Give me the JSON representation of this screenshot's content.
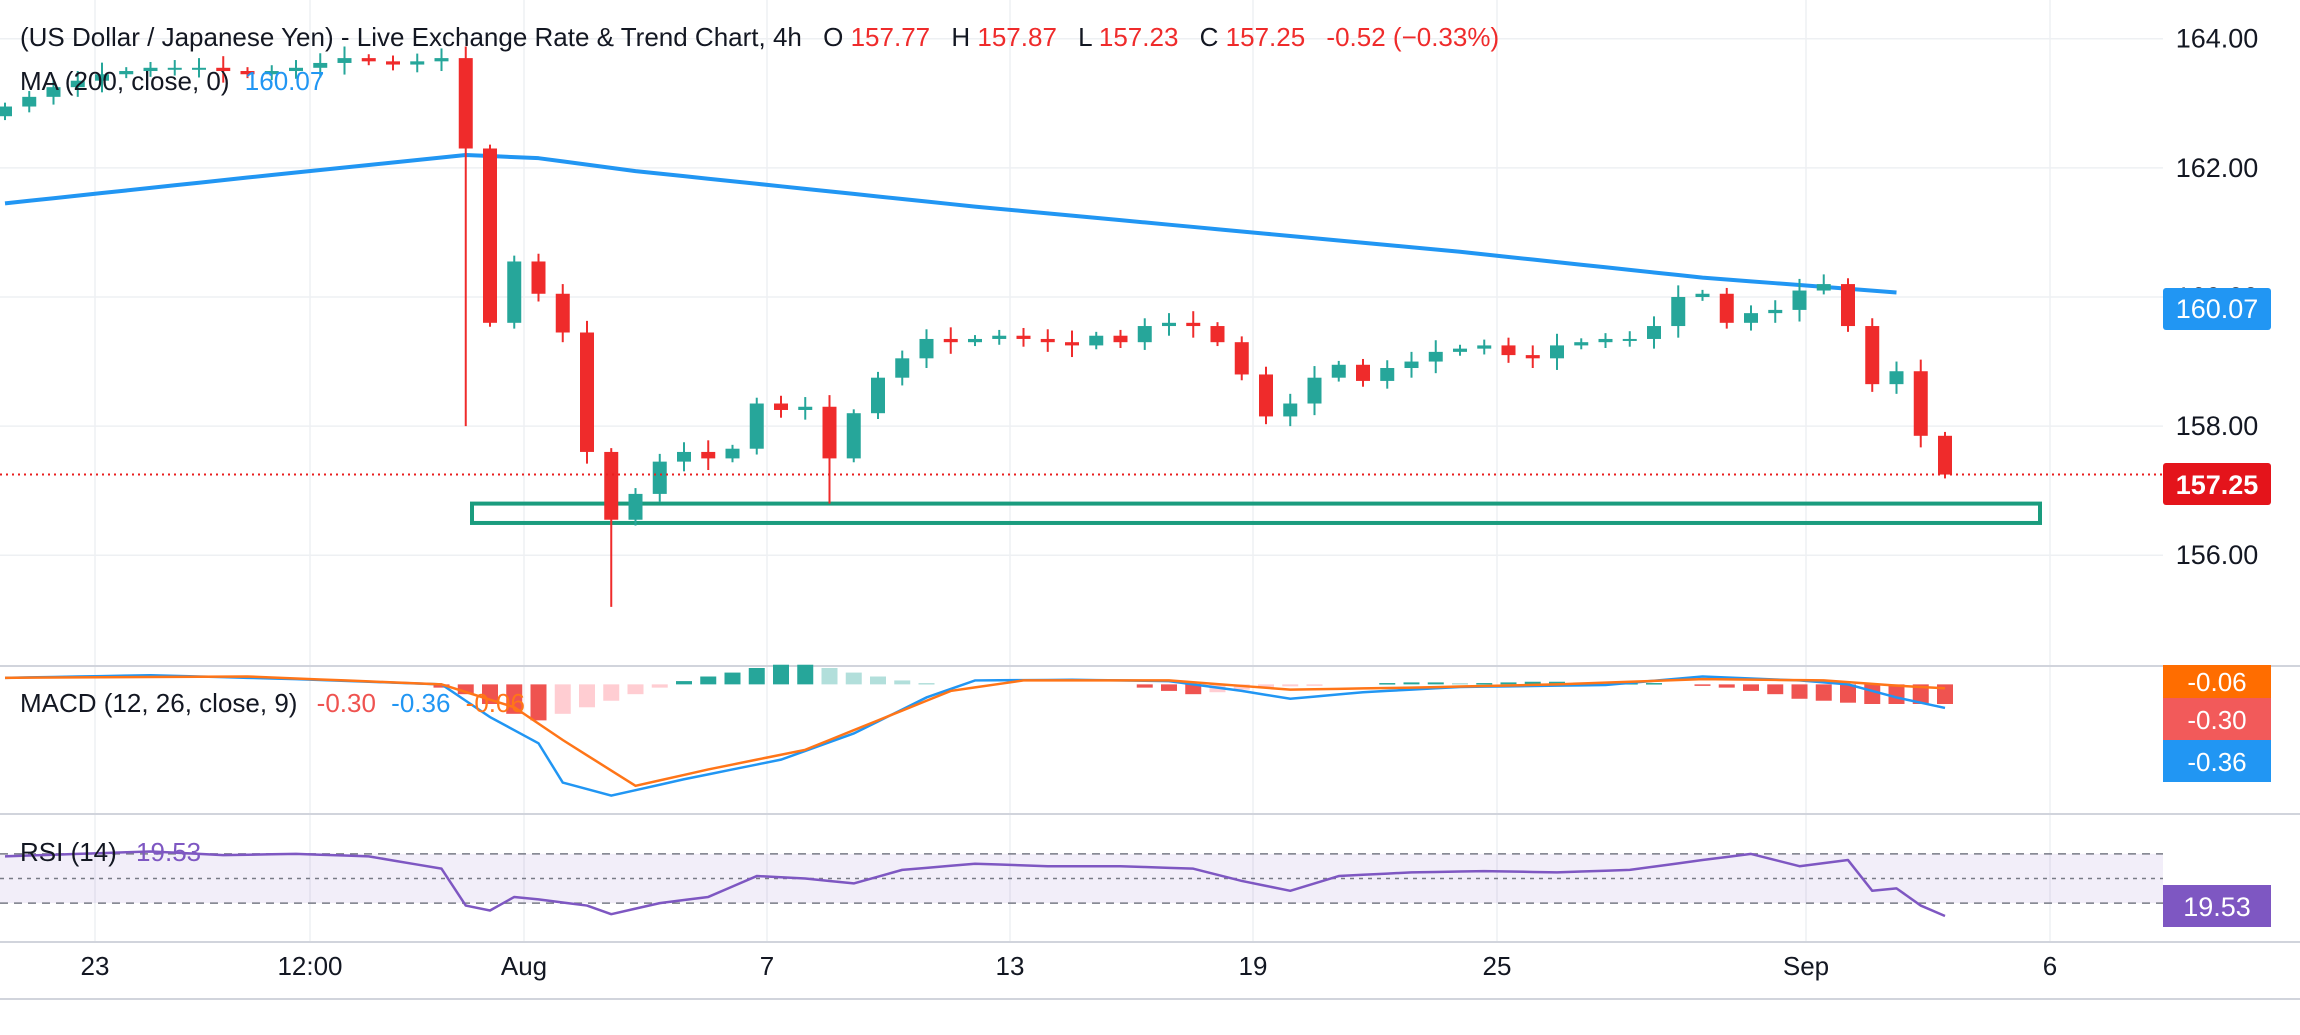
{
  "header": {
    "symbol": "(US Dollar / Japanese Yen) - Live Exchange Rate & Trend Chart, 4h",
    "o_label": "O",
    "o_value": "157.77",
    "h_label": "H",
    "h_value": "157.87",
    "l_label": "L",
    "l_value": "157.23",
    "c_label": "C",
    "c_value": "157.25",
    "change": "-0.52 (−0.33%)"
  },
  "legends": {
    "ma_label": "MA (200, close, 0)",
    "ma_value": "160.07",
    "macd_label": "MACD (12, 26, close, 9)",
    "macd_hist": "-0.30",
    "macd_line": "-0.36",
    "macd_signal": "-0.06",
    "rsi_label": "RSI (14)",
    "rsi_value": "19.53"
  },
  "badges": {
    "ma": "160.07",
    "price": "157.25",
    "macd_signal": "-0.06",
    "macd_hist": "-0.30",
    "macd_line": "-0.36",
    "rsi": "19.53"
  },
  "colors": {
    "up": "#26a69a",
    "down": "#ef2b2b",
    "ma": "#2196f3",
    "macd_line": "#2196f3",
    "signal_line": "#ff7518",
    "rsi": "#7e57c2",
    "support_zone": "#1a9c7e",
    "price_line": "#e91e1e"
  },
  "chart_data": [
    {
      "type": "candlestick",
      "title": "(US Dollar / Japanese Yen) - Live Exchange Rate & Trend Chart, 4h",
      "x_ticks": [
        "23",
        "12:00",
        "Aug",
        "7",
        "13",
        "19",
        "25",
        "Sep",
        "6"
      ],
      "y_ticks": [
        "156.00",
        "158.00",
        "160.00",
        "162.00",
        "164.00"
      ],
      "ylim": [
        154.3,
        164.6
      ],
      "last_price": 157.25,
      "support_zone": [
        156.5,
        156.8
      ],
      "price_path": [
        [
          0,
          162.95
        ],
        [
          1,
          163.1
        ],
        [
          2,
          163.25
        ],
        [
          4,
          163.45
        ],
        [
          6,
          163.55
        ],
        [
          8,
          163.55
        ],
        [
          10,
          163.45
        ],
        [
          12,
          163.55
        ],
        [
          14,
          163.7
        ],
        [
          16,
          163.6
        ],
        [
          18,
          163.7
        ],
        [
          19,
          162.3
        ],
        [
          20,
          159.6
        ],
        [
          21,
          160.55
        ],
        [
          22,
          160.05
        ],
        [
          23,
          159.45
        ],
        [
          24,
          157.6
        ],
        [
          25,
          156.55
        ],
        [
          26,
          156.95
        ],
        [
          27,
          157.45
        ],
        [
          28,
          157.6
        ],
        [
          29,
          157.5
        ],
        [
          30,
          157.65
        ],
        [
          31,
          158.35
        ],
        [
          32,
          158.25
        ],
        [
          33,
          158.3
        ],
        [
          34,
          157.5
        ],
        [
          35,
          158.2
        ],
        [
          36,
          158.75
        ],
        [
          37,
          159.05
        ],
        [
          38,
          159.35
        ],
        [
          39,
          159.3
        ],
        [
          40,
          159.35
        ],
        [
          41,
          159.4
        ],
        [
          42,
          159.35
        ],
        [
          43,
          159.3
        ],
        [
          44,
          159.25
        ],
        [
          45,
          159.4
        ],
        [
          46,
          159.3
        ],
        [
          47,
          159.55
        ],
        [
          48,
          159.6
        ],
        [
          49,
          159.55
        ],
        [
          50,
          159.3
        ],
        [
          51,
          158.8
        ],
        [
          52,
          158.15
        ],
        [
          53,
          158.35
        ],
        [
          54,
          158.75
        ],
        [
          55,
          158.95
        ],
        [
          56,
          158.7
        ],
        [
          57,
          158.9
        ],
        [
          58,
          159.0
        ],
        [
          59,
          159.15
        ],
        [
          60,
          159.2
        ],
        [
          61,
          159.25
        ],
        [
          62,
          159.1
        ],
        [
          63,
          159.05
        ],
        [
          64,
          159.25
        ],
        [
          65,
          159.3
        ],
        [
          66,
          159.35
        ],
        [
          67,
          159.35
        ],
        [
          68,
          159.55
        ],
        [
          69,
          160.0
        ],
        [
          70,
          160.05
        ],
        [
          71,
          159.6
        ],
        [
          72,
          159.75
        ],
        [
          73,
          159.8
        ],
        [
          74,
          160.1
        ],
        [
          75,
          160.2
        ],
        [
          76,
          159.55
        ],
        [
          77,
          158.65
        ],
        [
          78,
          158.85
        ],
        [
          79,
          157.85
        ],
        [
          80,
          157.25
        ]
      ]
    },
    {
      "type": "line",
      "series": [
        {
          "name": "MA (200, close, 0)",
          "points": [
            [
              0,
              161.45
            ],
            [
              10,
              161.85
            ],
            [
              19,
              162.2
            ],
            [
              22,
              162.15
            ],
            [
              26,
              161.95
            ],
            [
              40,
              161.4
            ],
            [
              50,
              161.05
            ],
            [
              60,
              160.7
            ],
            [
              70,
              160.3
            ],
            [
              78,
              160.07
            ]
          ]
        }
      ]
    },
    {
      "type": "line",
      "title": "MACD (12, 26, close, 9)",
      "ylim": [
        -1.95,
        0.25
      ],
      "series": [
        {
          "name": "MACD",
          "points": [
            [
              0,
              0.1
            ],
            [
              6,
              0.14
            ],
            [
              12,
              0.08
            ],
            [
              18,
              0.0
            ],
            [
              20,
              -0.5
            ],
            [
              22,
              -0.9
            ],
            [
              23,
              -1.5
            ],
            [
              25,
              -1.7
            ],
            [
              28,
              -1.45
            ],
            [
              32,
              -1.15
            ],
            [
              35,
              -0.75
            ],
            [
              38,
              -0.2
            ],
            [
              40,
              0.06
            ],
            [
              44,
              0.07
            ],
            [
              48,
              0.05
            ],
            [
              51,
              -0.1
            ],
            [
              53,
              -0.22
            ],
            [
              56,
              -0.12
            ],
            [
              60,
              -0.04
            ],
            [
              66,
              -0.01
            ],
            [
              70,
              0.12
            ],
            [
              74,
              0.06
            ],
            [
              76,
              0.0
            ],
            [
              78,
              -0.2
            ],
            [
              80,
              -0.36
            ]
          ]
        },
        {
          "name": "Signal",
          "points": [
            [
              0,
              0.1
            ],
            [
              10,
              0.12
            ],
            [
              18,
              0.0
            ],
            [
              21,
              -0.35
            ],
            [
              23,
              -0.85
            ],
            [
              26,
              -1.55
            ],
            [
              29,
              -1.3
            ],
            [
              33,
              -1.0
            ],
            [
              36,
              -0.55
            ],
            [
              39,
              -0.1
            ],
            [
              42,
              0.06
            ],
            [
              48,
              0.06
            ],
            [
              53,
              -0.08
            ],
            [
              58,
              -0.05
            ],
            [
              64,
              0.0
            ],
            [
              70,
              0.08
            ],
            [
              75,
              0.06
            ],
            [
              78,
              -0.02
            ],
            [
              80,
              -0.06
            ]
          ]
        },
        {
          "name": "Histogram",
          "values": [
            0.0,
            0.0,
            0.0,
            0.0,
            0.0,
            0.0,
            0.0,
            0.0,
            0.0,
            0.0,
            0.0,
            0.0,
            0.0,
            0.0,
            0.0,
            0.0,
            0.0,
            0.0,
            -0.05,
            -0.15,
            -0.3,
            -0.45,
            -0.55,
            -0.45,
            -0.35,
            -0.25,
            -0.15,
            -0.05,
            0.05,
            0.12,
            0.18,
            0.25,
            0.3,
            0.3,
            0.25,
            0.18,
            0.12,
            0.06,
            0.02,
            0.0,
            0.0,
            0.0,
            0.0,
            0.0,
            0.0,
            0.0,
            0.0,
            -0.05,
            -0.1,
            -0.15,
            -0.12,
            -0.08,
            -0.05,
            -0.03,
            -0.02,
            0.0,
            0.0,
            0.02,
            0.03,
            0.03,
            0.02,
            0.02,
            0.03,
            0.04,
            0.04,
            0.03,
            0.02,
            0.02,
            0.02,
            0.0,
            -0.02,
            -0.05,
            -0.1,
            -0.15,
            -0.22,
            -0.25,
            -0.28,
            -0.3,
            -0.3,
            -0.3,
            -0.3
          ]
        }
      ]
    },
    {
      "type": "line",
      "title": "RSI (14)",
      "ylim": [
        0,
        100
      ],
      "bands": [
        30,
        50,
        70
      ],
      "series": [
        {
          "name": "RSI",
          "points": [
            [
              0,
              68
            ],
            [
              3,
              70
            ],
            [
              6,
              72
            ],
            [
              9,
              69
            ],
            [
              12,
              70
            ],
            [
              15,
              68
            ],
            [
              18,
              58
            ],
            [
              19,
              28
            ],
            [
              20,
              24
            ],
            [
              21,
              35
            ],
            [
              22,
              33
            ],
            [
              24,
              28
            ],
            [
              25,
              21
            ],
            [
              27,
              30
            ],
            [
              29,
              35
            ],
            [
              31,
              52
            ],
            [
              33,
              50
            ],
            [
              35,
              46
            ],
            [
              37,
              57
            ],
            [
              40,
              62
            ],
            [
              43,
              60
            ],
            [
              46,
              60
            ],
            [
              49,
              58
            ],
            [
              51,
              48
            ],
            [
              53,
              40
            ],
            [
              55,
              52
            ],
            [
              58,
              55
            ],
            [
              61,
              56
            ],
            [
              64,
              55
            ],
            [
              67,
              57
            ],
            [
              70,
              65
            ],
            [
              72,
              70
            ],
            [
              74,
              60
            ],
            [
              76,
              65
            ],
            [
              77,
              40
            ],
            [
              78,
              42
            ],
            [
              79,
              28
            ],
            [
              80,
              19.53
            ]
          ]
        }
      ]
    }
  ]
}
